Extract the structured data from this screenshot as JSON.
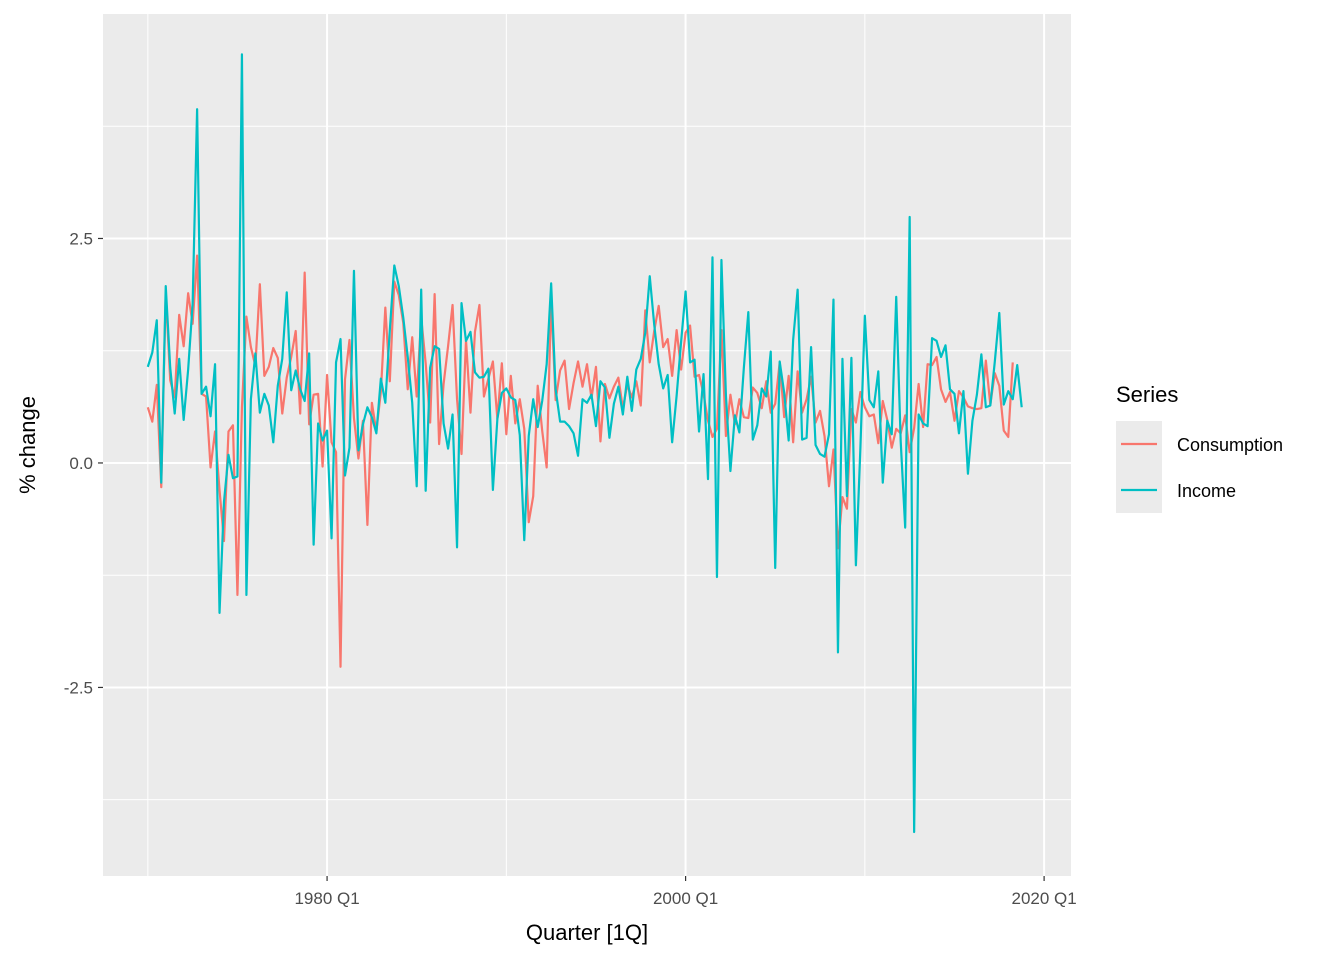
{
  "chart_data": {
    "type": "line",
    "title": "",
    "xlabel": "Quarter [1Q]",
    "ylabel": "% change",
    "x_start": "1970 Q1",
    "x_end": "2019 Q2",
    "x_ticks": [
      "1980 Q1",
      "2000 Q1",
      "2020 Q1"
    ],
    "x_tick_values": [
      1980,
      2000,
      2020
    ],
    "xlim": [
      1967.5,
      2021.5
    ],
    "y_ticks": [
      -2.5,
      0.0,
      2.5
    ],
    "y_tick_labels": [
      "-2.5",
      "0.0",
      "2.5"
    ],
    "ylim": [
      -4.6,
      5.0
    ],
    "grid": true,
    "legend": {
      "title": "Series",
      "placement": "right"
    },
    "series": [
      {
        "name": "Consumption",
        "color": "#F8766D",
        "values": [
          0.62,
          0.46,
          0.87,
          -0.27,
          1.9,
          0.92,
          0.73,
          1.65,
          1.3,
          1.89,
          1.55,
          2.31,
          0.77,
          0.74,
          -0.05,
          0.35,
          -0.3,
          -0.87,
          0.35,
          0.42,
          -1.47,
          0.62,
          1.63,
          1.29,
          1.08,
          1.99,
          0.97,
          1.07,
          1.28,
          1.17,
          0.55,
          0.95,
          1.18,
          1.47,
          0.55,
          2.12,
          0.43,
          0.76,
          0.77,
          -0.04,
          0.98,
          0.23,
          0.12,
          -2.27,
          0.93,
          1.37,
          0.5,
          0.05,
          0.47,
          -0.69,
          0.67,
          0.35,
          0.79,
          1.73,
          0.91,
          2.02,
          1.87,
          1.56,
          0.82,
          1.4,
          0.74,
          1.62,
          1.11,
          0.45,
          1.88,
          0.21,
          0.88,
          1.3,
          1.76,
          0.71,
          0.1,
          1.37,
          0.56,
          1.46,
          1.76,
          0.74,
          0.94,
          1.13,
          0.49,
          1.11,
          0.32,
          0.97,
          0.44,
          0.71,
          0.38,
          -0.66,
          -0.37,
          0.86,
          0.36,
          -0.05,
          1.82,
          0.7,
          1.03,
          1.14,
          0.6,
          0.89,
          1.13,
          0.85,
          1.1,
          0.72,
          1.07,
          0.24,
          0.88,
          0.72,
          0.85,
          0.95,
          0.61,
          0.87,
          0.73,
          0.91,
          0.64,
          1.7,
          1.12,
          1.47,
          1.75,
          1.29,
          1.38,
          0.97,
          1.48,
          1.04,
          1.45,
          1.53,
          0.96,
          0.98,
          0.77,
          0.47,
          0.29,
          0.38,
          1.48,
          0.3,
          0.76,
          0.43,
          0.71,
          0.51,
          0.5,
          0.84,
          0.78,
          0.61,
          0.91,
          0.56,
          0.66,
          1.12,
          0.51,
          0.97,
          0.23,
          1.02,
          0.56,
          0.71,
          0.96,
          0.45,
          0.58,
          0.3,
          -0.26,
          0.15,
          -0.95,
          -0.38,
          -0.51,
          0.6,
          0.45,
          0.79,
          0.62,
          0.52,
          0.54,
          0.22,
          0.69,
          0.48,
          0.17,
          0.38,
          0.33,
          0.53,
          0.12,
          0.39,
          0.88,
          0.4,
          1.1,
          1.09,
          1.18,
          0.82,
          0.68,
          0.79,
          0.47,
          0.8,
          0.73,
          0.63,
          0.61,
          0.6,
          0.61,
          1.14,
          0.65,
          1.0,
          0.86,
          0.36,
          0.29,
          1.12
        ]
      },
      {
        "name": "Income",
        "color": "#00BFC4",
        "values": [
          1.07,
          1.23,
          1.59,
          -0.22,
          1.97,
          1.06,
          0.55,
          1.16,
          0.48,
          1.04,
          1.77,
          3.94,
          0.77,
          0.85,
          0.52,
          1.1,
          -1.67,
          -0.43,
          0.09,
          -0.17,
          -0.15,
          4.55,
          -1.47,
          0.71,
          1.22,
          0.56,
          0.77,
          0.64,
          0.23,
          0.86,
          1.16,
          1.9,
          0.81,
          1.03,
          0.82,
          0.69,
          1.22,
          -0.91,
          0.44,
          0.25,
          0.36,
          -0.84,
          1.12,
          1.38,
          -0.14,
          0.17,
          2.14,
          0.14,
          0.43,
          0.62,
          0.51,
          0.33,
          0.94,
          0.67,
          1.48,
          2.2,
          1.97,
          1.62,
          1.18,
          0.67,
          -0.26,
          1.93,
          -0.31,
          1.06,
          1.3,
          1.27,
          0.44,
          0.16,
          0.54,
          -0.94,
          1.78,
          1.36,
          1.46,
          1.01,
          0.95,
          0.96,
          1.05,
          -0.3,
          0.49,
          0.78,
          0.83,
          0.73,
          0.7,
          0.31,
          -0.86,
          0.3,
          0.71,
          0.4,
          0.69,
          1.1,
          2.0,
          0.82,
          0.46,
          0.46,
          0.41,
          0.33,
          0.08,
          0.71,
          0.67,
          0.76,
          0.41,
          0.91,
          0.84,
          0.28,
          0.66,
          0.85,
          0.54,
          0.96,
          0.58,
          1.04,
          1.16,
          1.45,
          2.08,
          1.54,
          1.1,
          0.83,
          0.98,
          0.23,
          0.75,
          1.35,
          1.91,
          1.12,
          1.15,
          0.35,
          0.99,
          -0.18,
          2.29,
          -1.27,
          2.26,
          0.75,
          -0.09,
          0.53,
          0.34,
          1.06,
          1.68,
          0.26,
          0.42,
          0.83,
          0.74,
          1.24,
          -1.17,
          1.13,
          0.78,
          0.25,
          1.37,
          1.93,
          0.26,
          0.28,
          1.29,
          0.2,
          0.1,
          0.07,
          0.32,
          1.82,
          -2.11,
          1.16,
          -0.37,
          1.17,
          -1.14,
          0.16,
          1.64,
          0.7,
          0.62,
          1.02,
          -0.22,
          0.47,
          0.32,
          1.85,
          0.24,
          -0.72,
          2.74,
          -4.11,
          0.54,
          0.44,
          0.41,
          1.39,
          1.36,
          1.18,
          1.31,
          0.82,
          0.77,
          0.33,
          0.8,
          -0.12,
          0.47,
          0.76,
          1.21,
          0.62,
          0.64,
          1.13,
          1.67,
          0.65,
          0.8,
          0.71,
          1.09,
          0.62
        ]
      }
    ]
  }
}
